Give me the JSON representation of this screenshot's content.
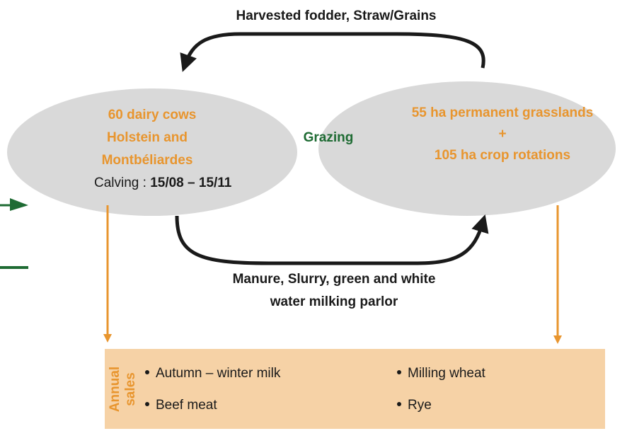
{
  "top_label": "Harvested fodder, Straw/Grains",
  "herd": {
    "lines": [
      "60 dairy cows",
      "Holstein and",
      "Montbéliardes"
    ],
    "calving_label": "Calving : ",
    "calving_dates": "15/08 – 15/11"
  },
  "center_label": "Grazing",
  "land": {
    "lines": [
      "55 ha permanent grasslands",
      "+",
      "105 ha crop rotations"
    ]
  },
  "bottom_label": [
    "Manure, Slurry, green and white",
    "water milking parlor"
  ],
  "sales": {
    "title": [
      "Annual",
      "sales"
    ],
    "items_left": [
      "Autumn – winter milk",
      "Beef meat"
    ],
    "items_right": [
      "Milling wheat",
      "Rye"
    ]
  }
}
